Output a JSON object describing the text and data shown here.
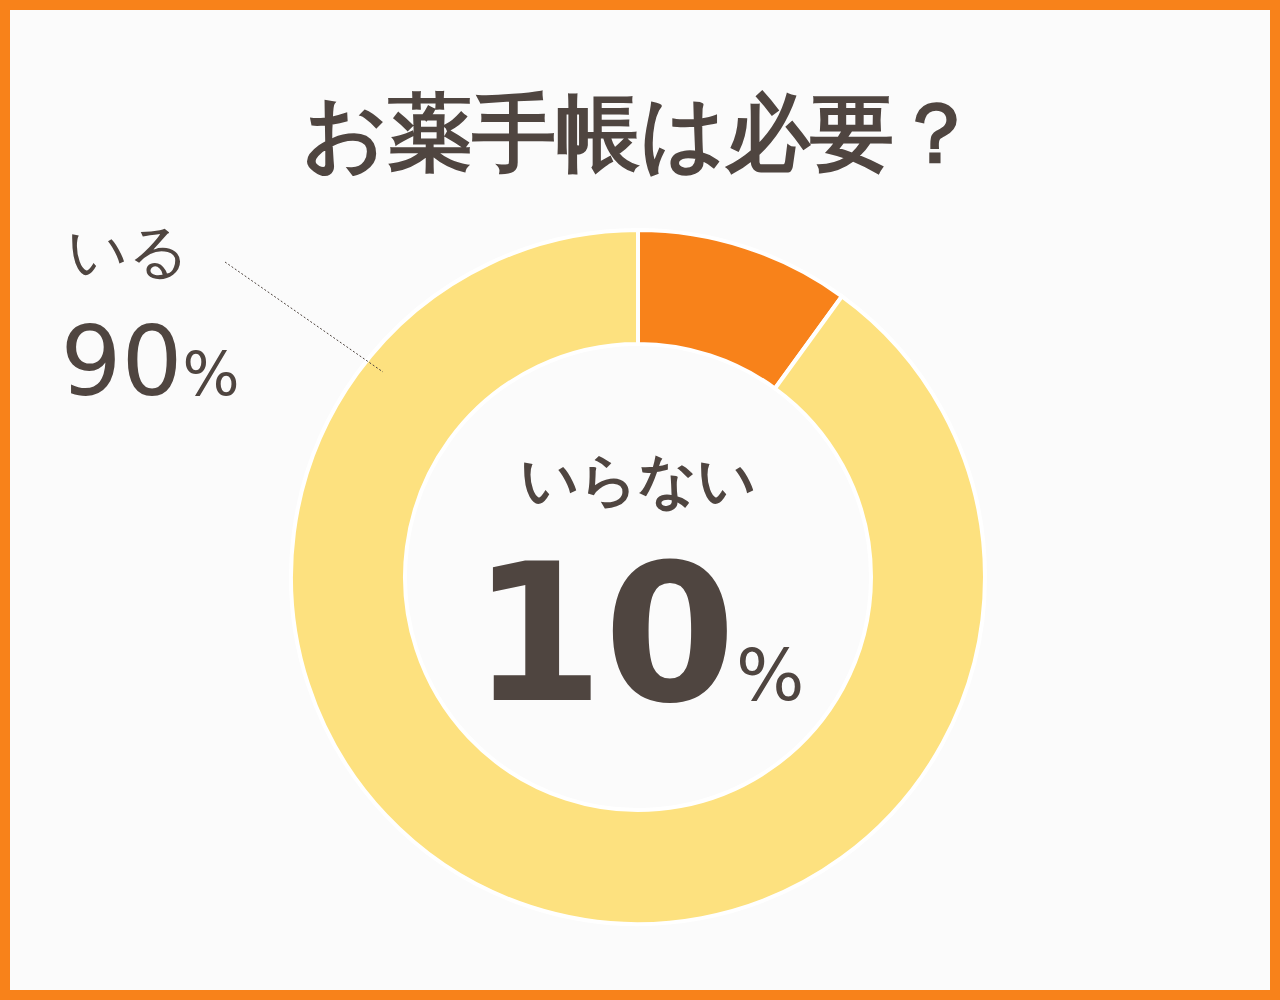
{
  "chart_data": {
    "type": "donut",
    "title": "お薬手帳は必要？",
    "categories": [
      "いらない",
      "いる"
    ],
    "values": [
      10,
      90
    ],
    "colors": [
      "#f8821a",
      "#fde17f"
    ],
    "value_labels": [
      "10%",
      "90%"
    ]
  }
}
